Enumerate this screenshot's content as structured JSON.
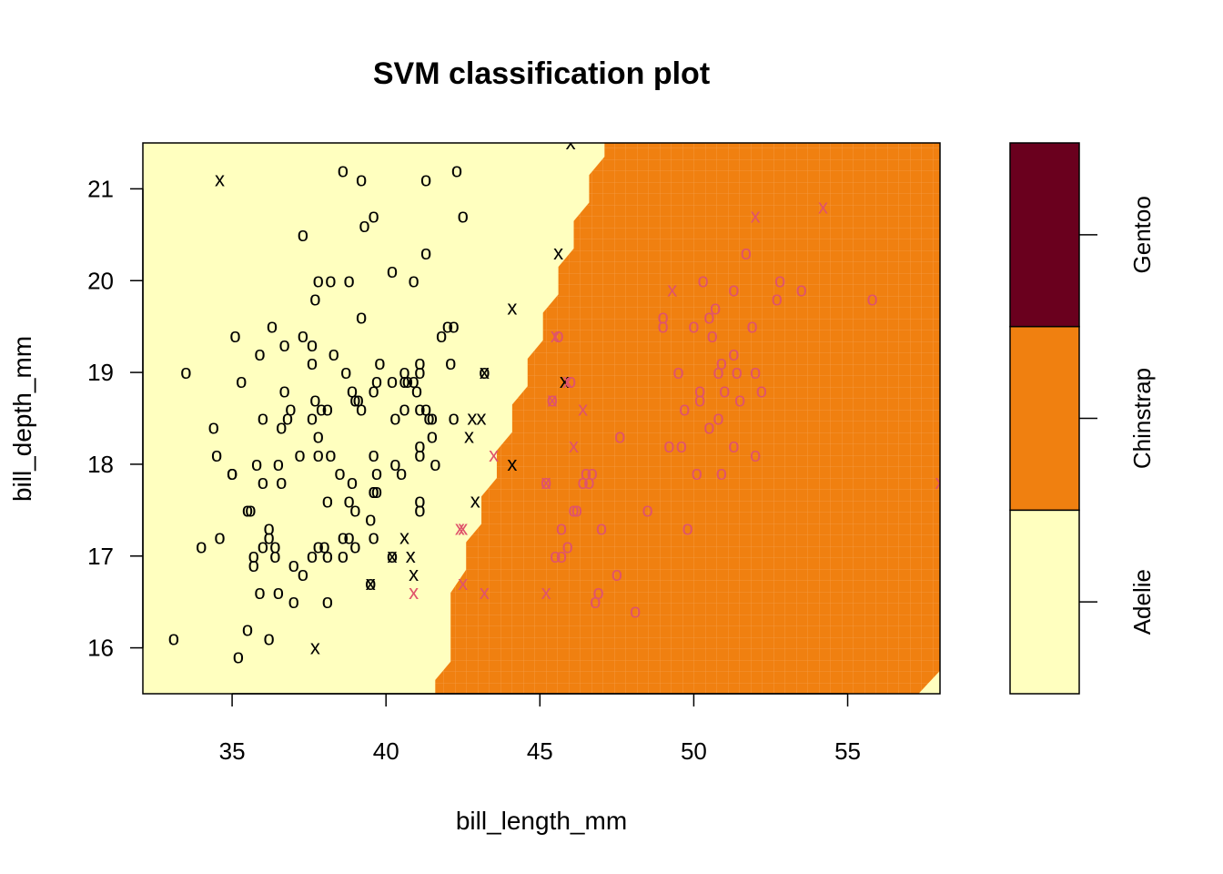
{
  "chart_data": {
    "type": "scatter",
    "title": "SVM classification plot",
    "xlabel": "bill_length_mm",
    "ylabel": "bill_depth_mm",
    "xlim": [
      32.1,
      58.0
    ],
    "ylim": [
      15.5,
      21.5
    ],
    "xticks": [
      35,
      40,
      45,
      50,
      55
    ],
    "yticks": [
      16,
      17,
      18,
      19,
      20,
      21
    ],
    "class_colors": {
      "Adelie": "#FFFFBF",
      "Chinstrap": "#F08010",
      "Gentoo": "#6A001E"
    },
    "point_colors": {
      "Adelie": "#000000",
      "Chinstrap": "#DF536B"
    },
    "legend": {
      "classes": [
        "Adelie",
        "Chinstrap",
        "Gentoo"
      ],
      "placement": "right"
    },
    "decision_boundary": [
      [
        41.6,
        15.5
      ],
      [
        41.6,
        15.65
      ],
      [
        42.1,
        15.85
      ],
      [
        42.1,
        16.6
      ],
      [
        42.6,
        16.85
      ],
      [
        42.6,
        17.15
      ],
      [
        43.1,
        17.35
      ],
      [
        43.1,
        17.65
      ],
      [
        43.6,
        17.85
      ],
      [
        43.6,
        18.15
      ],
      [
        44.1,
        18.35
      ],
      [
        44.1,
        18.65
      ],
      [
        44.6,
        18.85
      ],
      [
        44.6,
        19.15
      ],
      [
        45.1,
        19.35
      ],
      [
        45.1,
        19.65
      ],
      [
        45.6,
        19.85
      ],
      [
        45.6,
        20.15
      ],
      [
        46.1,
        20.35
      ],
      [
        46.1,
        20.65
      ],
      [
        46.6,
        20.85
      ],
      [
        46.6,
        21.15
      ],
      [
        47.1,
        21.35
      ],
      [
        47.1,
        21.5
      ]
    ],
    "lower_right_cut": [
      [
        57.3,
        15.5
      ],
      [
        58.0,
        15.75
      ]
    ],
    "series": [
      {
        "name": "Adelie",
        "marker": "o",
        "points": [
          [
            33.1,
            16.1
          ],
          [
            33.5,
            19.0
          ],
          [
            34.0,
            17.1
          ],
          [
            34.4,
            18.4
          ],
          [
            34.5,
            18.1
          ],
          [
            34.6,
            17.2
          ],
          [
            35.0,
            17.9
          ],
          [
            35.0,
            17.9
          ],
          [
            35.1,
            19.4
          ],
          [
            35.2,
            15.9
          ],
          [
            35.3,
            18.9
          ],
          [
            35.5,
            16.2
          ],
          [
            35.5,
            17.5
          ],
          [
            35.6,
            17.5
          ],
          [
            35.7,
            17.0
          ],
          [
            35.7,
            16.9
          ],
          [
            35.8,
            18.0
          ],
          [
            35.9,
            16.6
          ],
          [
            35.9,
            19.2
          ],
          [
            36.0,
            17.1
          ],
          [
            36.0,
            17.8
          ],
          [
            36.0,
            18.5
          ],
          [
            36.2,
            16.1
          ],
          [
            36.2,
            17.2
          ],
          [
            36.2,
            17.3
          ],
          [
            36.3,
            19.5
          ],
          [
            36.4,
            17.0
          ],
          [
            36.4,
            17.1
          ],
          [
            36.5,
            16.6
          ],
          [
            36.5,
            18.0
          ],
          [
            36.6,
            17.8
          ],
          [
            36.6,
            18.4
          ],
          [
            36.7,
            18.8
          ],
          [
            36.7,
            19.3
          ],
          [
            36.8,
            18.5
          ],
          [
            36.9,
            18.6
          ],
          [
            37.0,
            16.5
          ],
          [
            37.0,
            16.9
          ],
          [
            37.2,
            18.1
          ],
          [
            37.3,
            16.8
          ],
          [
            37.3,
            19.4
          ],
          [
            37.3,
            20.5
          ],
          [
            37.6,
            17.0
          ],
          [
            37.6,
            18.5
          ],
          [
            37.6,
            19.1
          ],
          [
            37.6,
            19.3
          ],
          [
            37.7,
            18.7
          ],
          [
            37.7,
            19.8
          ],
          [
            37.8,
            17.1
          ],
          [
            37.8,
            18.1
          ],
          [
            37.8,
            18.3
          ],
          [
            37.8,
            20.0
          ],
          [
            37.9,
            18.6
          ],
          [
            38.0,
            17.1
          ],
          [
            38.1,
            16.5
          ],
          [
            38.1,
            17.0
          ],
          [
            38.1,
            17.6
          ],
          [
            38.1,
            18.6
          ],
          [
            38.2,
            18.1
          ],
          [
            38.2,
            20.0
          ],
          [
            38.3,
            19.2
          ],
          [
            38.5,
            17.9
          ],
          [
            38.6,
            17.0
          ],
          [
            38.6,
            17.2
          ],
          [
            38.6,
            21.2
          ],
          [
            38.7,
            19.0
          ],
          [
            38.8,
            17.2
          ],
          [
            38.8,
            17.6
          ],
          [
            38.8,
            20.0
          ],
          [
            38.9,
            17.8
          ],
          [
            38.9,
            18.8
          ],
          [
            39.0,
            17.1
          ],
          [
            39.0,
            17.5
          ],
          [
            39.0,
            18.7
          ],
          [
            39.1,
            18.7
          ],
          [
            39.2,
            18.6
          ],
          [
            39.2,
            19.6
          ],
          [
            39.2,
            21.1
          ],
          [
            39.3,
            20.6
          ],
          [
            39.5,
            16.7
          ],
          [
            39.5,
            17.4
          ],
          [
            39.6,
            17.2
          ],
          [
            39.6,
            17.7
          ],
          [
            39.6,
            17.7
          ],
          [
            39.6,
            18.1
          ],
          [
            39.6,
            18.8
          ],
          [
            39.6,
            20.7
          ],
          [
            39.7,
            17.7
          ],
          [
            39.7,
            17.9
          ],
          [
            39.7,
            18.9
          ],
          [
            39.8,
            19.1
          ],
          [
            40.2,
            17.0
          ],
          [
            40.2,
            18.9
          ],
          [
            40.2,
            20.1
          ],
          [
            40.3,
            18.0
          ],
          [
            40.3,
            18.5
          ],
          [
            40.5,
            17.9
          ],
          [
            40.6,
            18.6
          ],
          [
            40.6,
            18.9
          ],
          [
            40.6,
            19.0
          ],
          [
            40.7,
            18.9
          ],
          [
            40.9,
            18.9
          ],
          [
            40.9,
            20.0
          ],
          [
            41.0,
            18.8
          ],
          [
            41.1,
            17.5
          ],
          [
            41.1,
            17.6
          ],
          [
            41.1,
            18.1
          ],
          [
            41.1,
            18.2
          ],
          [
            41.1,
            18.6
          ],
          [
            41.1,
            19.0
          ],
          [
            41.1,
            19.1
          ],
          [
            41.3,
            18.6
          ],
          [
            41.3,
            20.3
          ],
          [
            41.3,
            21.1
          ],
          [
            41.4,
            18.5
          ],
          [
            41.5,
            18.3
          ],
          [
            41.5,
            18.5
          ],
          [
            41.6,
            18.0
          ],
          [
            41.8,
            19.4
          ],
          [
            42.0,
            19.5
          ],
          [
            42.1,
            19.1
          ],
          [
            42.2,
            18.5
          ],
          [
            42.2,
            19.5
          ],
          [
            42.3,
            21.2
          ],
          [
            42.5,
            20.7
          ],
          [
            43.2,
            19.0
          ]
        ]
      },
      {
        "name": "Adelie",
        "marker": "x",
        "points": [
          [
            34.6,
            21.1
          ],
          [
            37.7,
            16.0
          ],
          [
            39.5,
            16.7
          ],
          [
            40.2,
            17.0
          ],
          [
            40.6,
            17.2
          ],
          [
            40.8,
            17.0
          ],
          [
            40.9,
            16.8
          ],
          [
            42.8,
            18.5
          ],
          [
            42.9,
            17.6
          ],
          [
            43.1,
            18.5
          ],
          [
            43.2,
            19.0
          ],
          [
            44.1,
            18.0
          ],
          [
            44.1,
            19.7
          ],
          [
            45.6,
            20.3
          ],
          [
            45.8,
            18.9
          ],
          [
            46.0,
            21.5
          ],
          [
            42.7,
            18.3
          ]
        ]
      },
      {
        "name": "Chinstrap",
        "marker": "o",
        "points": [
          [
            45.2,
            17.8
          ],
          [
            45.4,
            18.7
          ],
          [
            45.5,
            17.0
          ],
          [
            45.6,
            19.4
          ],
          [
            45.7,
            17.0
          ],
          [
            45.7,
            17.3
          ],
          [
            45.9,
            17.1
          ],
          [
            46.0,
            18.9
          ],
          [
            46.1,
            17.5
          ],
          [
            46.2,
            17.5
          ],
          [
            46.4,
            17.8
          ],
          [
            46.5,
            17.9
          ],
          [
            46.6,
            17.8
          ],
          [
            46.7,
            17.9
          ],
          [
            46.8,
            16.5
          ],
          [
            46.9,
            16.6
          ],
          [
            47.0,
            17.3
          ],
          [
            47.5,
            16.8
          ],
          [
            47.6,
            18.3
          ],
          [
            48.1,
            16.4
          ],
          [
            48.5,
            17.5
          ],
          [
            49.0,
            19.5
          ],
          [
            49.0,
            19.6
          ],
          [
            49.2,
            18.2
          ],
          [
            49.5,
            19.0
          ],
          [
            49.6,
            18.2
          ],
          [
            49.7,
            18.6
          ],
          [
            49.8,
            17.3
          ],
          [
            50.0,
            19.5
          ],
          [
            50.1,
            17.9
          ],
          [
            50.2,
            18.7
          ],
          [
            50.2,
            18.8
          ],
          [
            50.3,
            20.0
          ],
          [
            50.5,
            18.4
          ],
          [
            50.5,
            19.6
          ],
          [
            50.6,
            19.4
          ],
          [
            50.7,
            19.7
          ],
          [
            50.8,
            18.5
          ],
          [
            50.8,
            19.0
          ],
          [
            50.9,
            17.9
          ],
          [
            50.9,
            19.1
          ],
          [
            51.0,
            18.8
          ],
          [
            51.3,
            18.2
          ],
          [
            51.3,
            19.2
          ],
          [
            51.3,
            19.9
          ],
          [
            51.4,
            19.0
          ],
          [
            51.5,
            18.7
          ],
          [
            51.7,
            20.3
          ],
          [
            51.9,
            19.5
          ],
          [
            52.0,
            18.1
          ],
          [
            52.0,
            19.0
          ],
          [
            52.2,
            18.8
          ],
          [
            52.7,
            19.8
          ],
          [
            52.8,
            20.0
          ],
          [
            53.5,
            19.9
          ],
          [
            55.8,
            19.8
          ]
        ]
      },
      {
        "name": "Chinstrap",
        "marker": "x",
        "points": [
          [
            40.9,
            16.6
          ],
          [
            42.4,
            17.3
          ],
          [
            42.5,
            17.3
          ],
          [
            42.5,
            16.7
          ],
          [
            43.2,
            16.6
          ],
          [
            43.5,
            18.1
          ],
          [
            45.2,
            16.6
          ],
          [
            45.2,
            17.8
          ],
          [
            45.4,
            18.7
          ],
          [
            45.5,
            19.4
          ],
          [
            45.9,
            18.9
          ],
          [
            46.1,
            18.2
          ],
          [
            46.4,
            18.6
          ],
          [
            49.3,
            19.9
          ],
          [
            52.0,
            20.7
          ],
          [
            54.2,
            20.8
          ],
          [
            58.0,
            17.8
          ]
        ]
      }
    ]
  }
}
